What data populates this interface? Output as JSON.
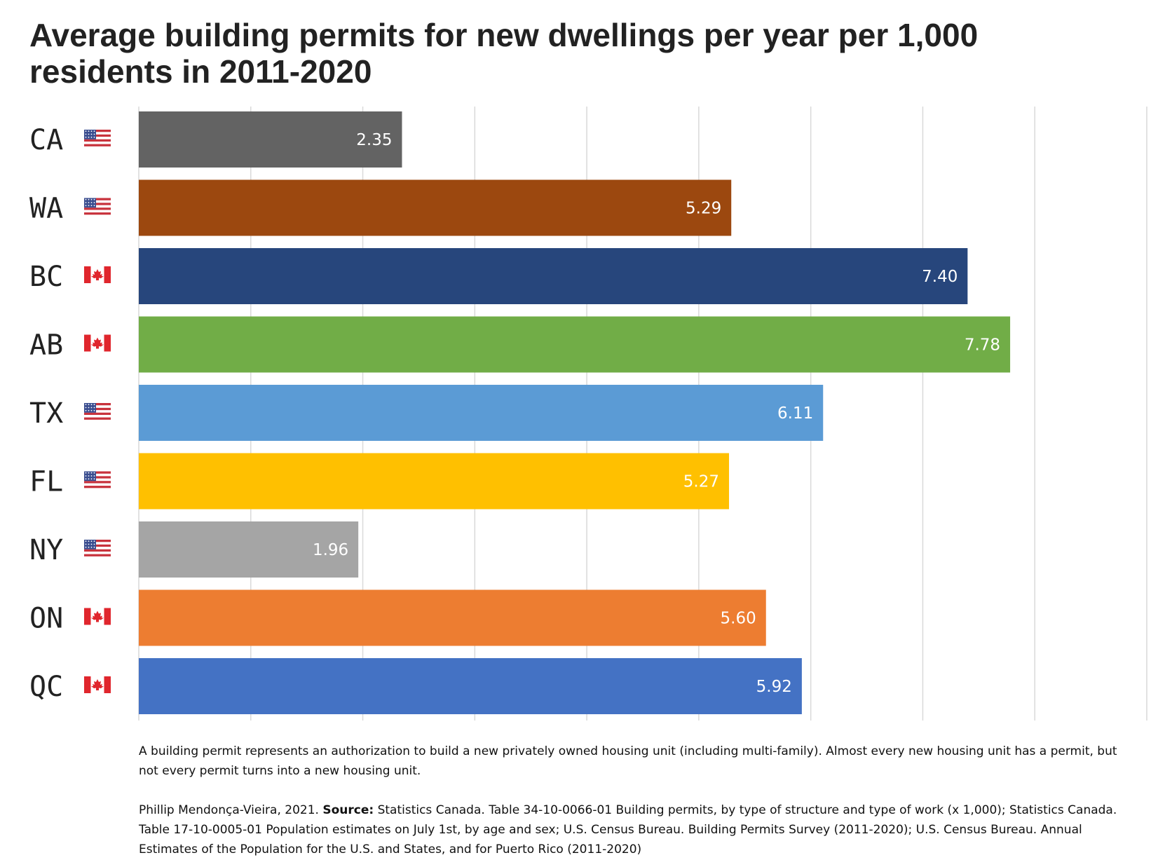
{
  "title": "Average building permits for new dwellings per year per 1,000 residents in 2011-2020",
  "chart_data": {
    "type": "bar",
    "orientation": "horizontal",
    "title": "Average building permits for new dwellings per year per 1,000 residents in 2011-2020",
    "categories": [
      "CA",
      "WA",
      "BC",
      "AB",
      "TX",
      "FL",
      "NY",
      "ON",
      "QC"
    ],
    "values": [
      2.35,
      5.29,
      7.4,
      7.78,
      6.11,
      5.27,
      1.96,
      5.6,
      5.92
    ],
    "value_labels": [
      "2.35",
      "5.29",
      "7.40",
      "7.78",
      "6.11",
      "5.27",
      "1.96",
      "5.60",
      "5.92"
    ],
    "flags": [
      "us-flag-icon",
      "us-flag-icon",
      "canada-flag-icon",
      "canada-flag-icon",
      "us-flag-icon",
      "us-flag-icon",
      "us-flag-icon",
      "canada-flag-icon",
      "canada-flag-icon"
    ],
    "colors": [
      "#636363",
      "#9C480F",
      "#27467C",
      "#71AD47",
      "#5B9BD5",
      "#FFC000",
      "#A5A5A5",
      "#ED7D31",
      "#4472C4"
    ],
    "xlim": [
      0,
      9
    ],
    "gridlines_x": [
      0,
      1,
      2,
      3,
      4,
      5,
      6,
      7,
      8,
      9
    ],
    "grid": true,
    "axis_tick_labels_shown": false,
    "legend": "none"
  },
  "notes": {
    "definition": "A building permit represents an authorization to build a new privately owned housing unit (including multi-family). Almost every new housing unit has a permit, but not every permit turns into a new housing unit.",
    "author": "Phillip Mendonça-Vieira, 2021.",
    "source_label": "Source:",
    "source_text": "Statistics Canada. Table 34-10-0066-01 Building permits, by type of structure and type of work (x 1,000); Statistics Canada. Table 17-10-0005-01 Population estimates on July 1st, by age and sex; U.S. Census Bureau. Building Permits Survey (2011-2020); U.S. Census Bureau. Annual Estimates of the Population for the U.S. and States, and for Puerto Rico (2011-2020)"
  }
}
